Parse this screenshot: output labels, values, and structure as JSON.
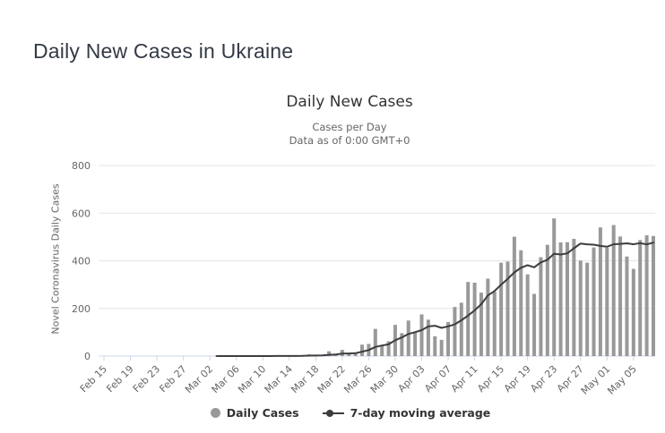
{
  "page": {
    "title": "Daily New Cases in Ukraine"
  },
  "chart": {
    "title": "Daily New Cases",
    "subtitle_line1": "Cases per Day",
    "subtitle_line2": "Data as of 0:00 GMT+0",
    "y_axis_title": "Novel Coronavirus Daily Cases",
    "legend_daily_label": "Daily Cases",
    "legend_ma_label": "7-day moving average"
  },
  "colors": {
    "bar": "#999999",
    "moving_average_line": "#3d3d3d",
    "gridline": "#e6e6e6",
    "axis_line": "#ccd6eb",
    "axis_label": "#666666",
    "chart_title": "#333333",
    "subtitle": "#666666",
    "legend_text": "#333333",
    "page_title": "#333a45"
  },
  "chart_data": {
    "type": "bar",
    "title": "Daily New Cases",
    "subtitle": [
      "Cases per Day",
      "Data as of 0:00 GMT+0"
    ],
    "xlabel": "",
    "ylabel": "Novel Coronavirus Daily Cases",
    "ylim": [
      0,
      800
    ],
    "yticks": [
      0,
      200,
      400,
      600,
      800
    ],
    "x_tick_every": 4,
    "grid": true,
    "legend_position": "bottom",
    "categories": [
      "Feb 15",
      "Feb 16",
      "Feb 17",
      "Feb 18",
      "Feb 19",
      "Feb 20",
      "Feb 21",
      "Feb 22",
      "Feb 23",
      "Feb 24",
      "Feb 25",
      "Feb 26",
      "Feb 27",
      "Feb 28",
      "Feb 29",
      "Mar 01",
      "Mar 02",
      "Mar 03",
      "Mar 04",
      "Mar 05",
      "Mar 06",
      "Mar 07",
      "Mar 08",
      "Mar 09",
      "Mar 10",
      "Mar 11",
      "Mar 12",
      "Mar 13",
      "Mar 14",
      "Mar 15",
      "Mar 16",
      "Mar 17",
      "Mar 18",
      "Mar 19",
      "Mar 20",
      "Mar 21",
      "Mar 22",
      "Mar 23",
      "Mar 24",
      "Mar 25",
      "Mar 26",
      "Mar 27",
      "Mar 28",
      "Mar 29",
      "Mar 30",
      "Mar 31",
      "Apr 01",
      "Apr 02",
      "Apr 03",
      "Apr 04",
      "Apr 05",
      "Apr 06",
      "Apr 07",
      "Apr 08",
      "Apr 09",
      "Apr 10",
      "Apr 11",
      "Apr 12",
      "Apr 13",
      "Apr 14",
      "Apr 15",
      "Apr 16",
      "Apr 17",
      "Apr 18",
      "Apr 19",
      "Apr 20",
      "Apr 21",
      "Apr 22",
      "Apr 23",
      "Apr 24",
      "Apr 25",
      "Apr 26",
      "Apr 27",
      "Apr 28",
      "Apr 29",
      "Apr 30",
      "May 01",
      "May 02",
      "May 03",
      "May 04",
      "May 05",
      "May 06",
      "May 07",
      "May 08"
    ],
    "series": [
      {
        "name": "Daily Cases",
        "type": "bar",
        "color": "#999999",
        "values": [
          0,
          0,
          0,
          0,
          0,
          0,
          0,
          0,
          0,
          0,
          0,
          0,
          0,
          0,
          0,
          0,
          0,
          1,
          0,
          0,
          0,
          0,
          0,
          0,
          0,
          0,
          2,
          0,
          0,
          0,
          4,
          7,
          2,
          5,
          20,
          6,
          26,
          11,
          13,
          48,
          51,
          114,
          46,
          62,
          131,
          96,
          149,
          103,
          175,
          153,
          83,
          68,
          143,
          206,
          224,
          311,
          308,
          266,
          325,
          270,
          392,
          397,
          501,
          444,
          343,
          261,
          415,
          467,
          578,
          477,
          478,
          492,
          401,
          392,
          456,
          540,
          455,
          550,
          502,
          418,
          366,
          487,
          507,
          504
        ]
      },
      {
        "name": "7-day moving average",
        "type": "line",
        "color": "#3d3d3d",
        "derived": "trailing 7-day mean of Daily Cases values"
      }
    ]
  }
}
